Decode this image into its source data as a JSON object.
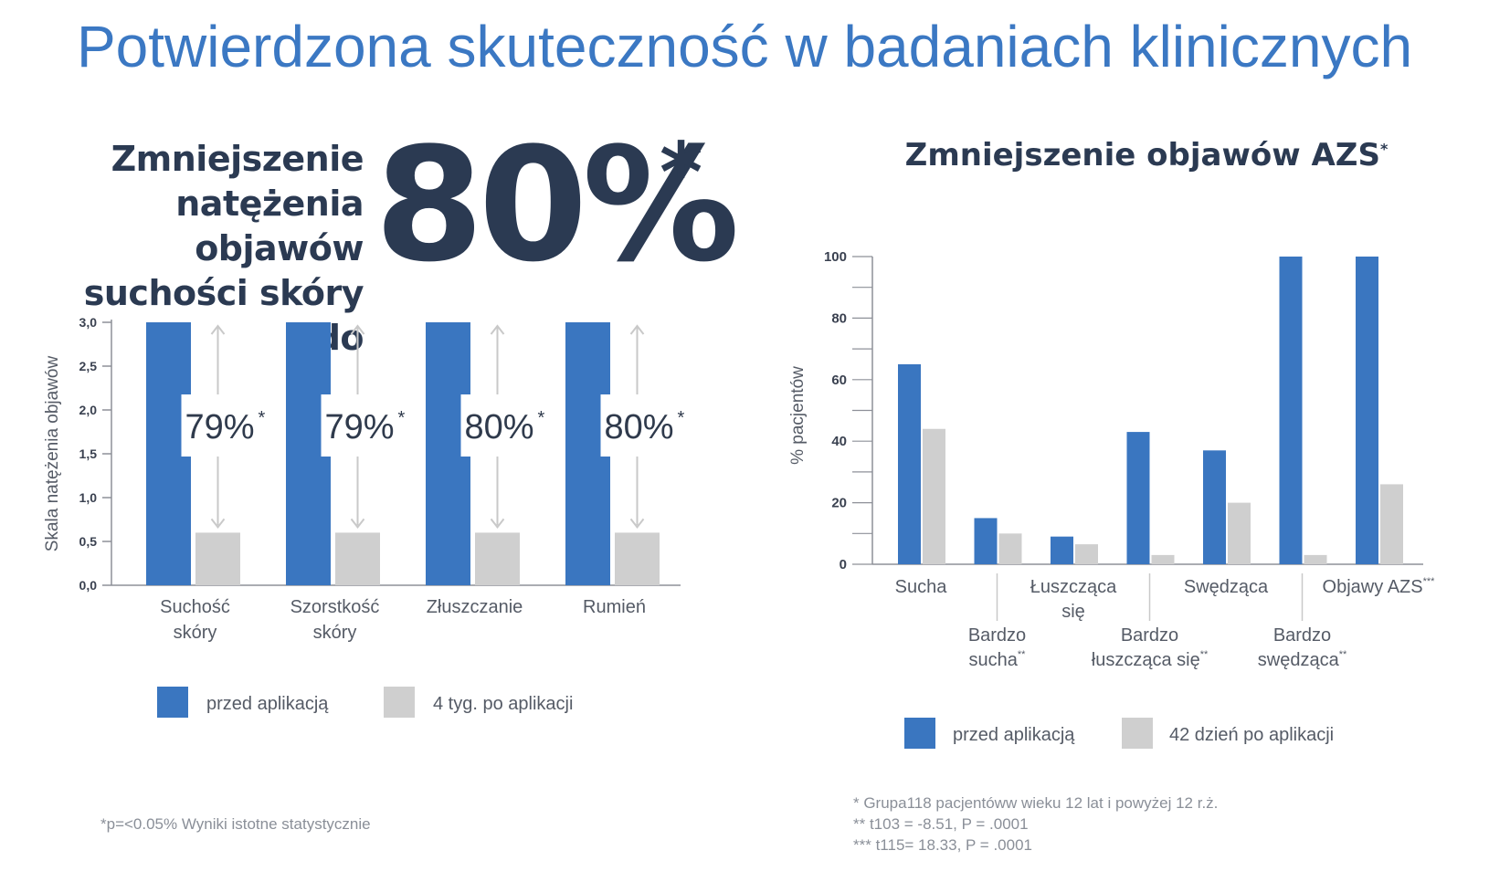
{
  "title": "Potwierdzona skuteczność w badaniach klinicznych",
  "headline": {
    "lines": [
      "Zmniejszenie",
      "natężenia objawów",
      "suchości skóry do"
    ],
    "value": "80%",
    "star": "*"
  },
  "colors": {
    "before": "#3a76c0",
    "after": "#cfcfcf",
    "title": "#3b78c3",
    "text": "#2b3a52",
    "axis": "#8d9098"
  },
  "chart_data": [
    {
      "type": "bar",
      "ylabel": "Skala natężenia objawów",
      "ylim": [
        0,
        3
      ],
      "yticks": [
        "0,0",
        "0,5",
        "1,0",
        "1,5",
        "2,0",
        "2,5",
        "3,0"
      ],
      "categories": [
        [
          "Suchość",
          "skóry"
        ],
        [
          "Szorstkość",
          "skóry"
        ],
        [
          "Złuszczanie"
        ],
        [
          "Rumień"
        ]
      ],
      "series": [
        {
          "name": "przed aplikacją",
          "values": [
            3.0,
            3.0,
            3.0,
            3.0
          ]
        },
        {
          "name": "4 tyg. po aplikacji",
          "values": [
            0.6,
            0.6,
            0.6,
            0.6
          ]
        }
      ],
      "annotations": [
        "79%",
        "79%",
        "80%",
        "80%"
      ],
      "annotation_mark": "*",
      "legend": "bottom"
    },
    {
      "type": "bar",
      "title": "Zmniejszenie objawów AZS",
      "title_mark": "*",
      "ylabel": "% pacjentów",
      "ylim": [
        0,
        100
      ],
      "yticks": [
        "0",
        "20",
        "40",
        "60",
        "80",
        "100"
      ],
      "categories": [
        {
          "lines": [
            "Sucha"
          ],
          "mark": ""
        },
        {
          "lines": [
            "Bardzo",
            "sucha"
          ],
          "mark": "**"
        },
        {
          "lines": [
            "Łuszcząca",
            "się"
          ],
          "mark": ""
        },
        {
          "lines": [
            "Bardzo",
            "łuszcząca się"
          ],
          "mark": "**"
        },
        {
          "lines": [
            "Swędząca"
          ],
          "mark": ""
        },
        {
          "lines": [
            "Bardzo",
            "swędząca"
          ],
          "mark": "**"
        },
        {
          "lines": [
            "Objawy AZS"
          ],
          "mark": "***"
        }
      ],
      "series": [
        {
          "name": "przed aplikacją",
          "values": [
            65,
            15,
            9,
            43,
            37,
            100,
            100
          ]
        },
        {
          "name": "42 dzień po aplikacji",
          "values": [
            44,
            10,
            6.5,
            3,
            20,
            3,
            26
          ]
        }
      ],
      "legend": "bottom"
    }
  ],
  "footnotes": {
    "left": "*p=<0.05% Wyniki istotne statystycznie",
    "right": [
      "* Grupa118 pacjentóww wieku 12 lat i powyżej 12 r.ż.",
      "** t103 = -8.51, P = .0001",
      "*** t115= 18.33, P = .0001"
    ]
  }
}
